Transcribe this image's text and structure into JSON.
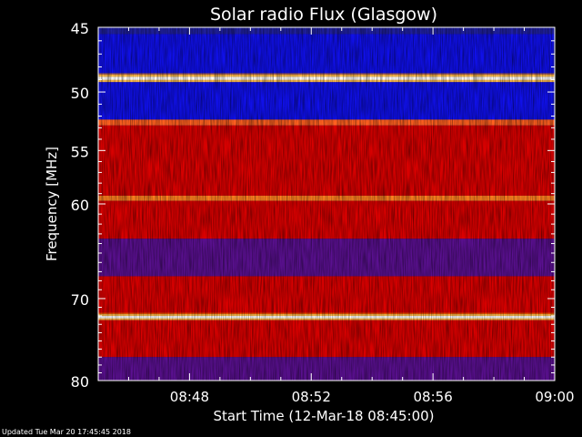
{
  "chart_data": {
    "type": "heatmap",
    "title": "Solar radio Flux (Glasgow)",
    "xlabel": "Start Time (12-Mar-18 08:45:00)",
    "ylabel": "Frequency [MHz]",
    "x_range": [
      "08:45",
      "09:00"
    ],
    "xticks": [
      "08:48",
      "08:52",
      "08:56",
      "09:00"
    ],
    "ylim": [
      45,
      80
    ],
    "yticks": [
      45,
      50,
      55,
      60,
      70,
      80
    ],
    "y_scale": "log",
    "colormap": [
      "#000080",
      "#0000ff",
      "#ff0000",
      "#ffff00",
      "#ffffff"
    ],
    "bands": [
      {
        "from": 45.0,
        "to": 45.5,
        "level": "low-blue"
      },
      {
        "from": 45.5,
        "to": 48.6,
        "level": "blue"
      },
      {
        "from": 48.6,
        "to": 49.2,
        "level": "peak"
      },
      {
        "from": 49.2,
        "to": 52.3,
        "level": "blue"
      },
      {
        "from": 52.3,
        "to": 52.8,
        "level": "bright-red"
      },
      {
        "from": 52.8,
        "to": 59.2,
        "level": "red"
      },
      {
        "from": 59.2,
        "to": 59.7,
        "level": "orange"
      },
      {
        "from": 59.7,
        "to": 63.5,
        "level": "red"
      },
      {
        "from": 63.5,
        "to": 67.5,
        "level": "purple"
      },
      {
        "from": 67.5,
        "to": 71.8,
        "level": "red"
      },
      {
        "from": 71.8,
        "to": 72.5,
        "level": "peak"
      },
      {
        "from": 72.5,
        "to": 77.0,
        "level": "red"
      },
      {
        "from": 77.0,
        "to": 80.0,
        "level": "purple"
      }
    ]
  },
  "footer": {
    "updated": "Updated Tue Mar 20 17:45:45 2018"
  }
}
